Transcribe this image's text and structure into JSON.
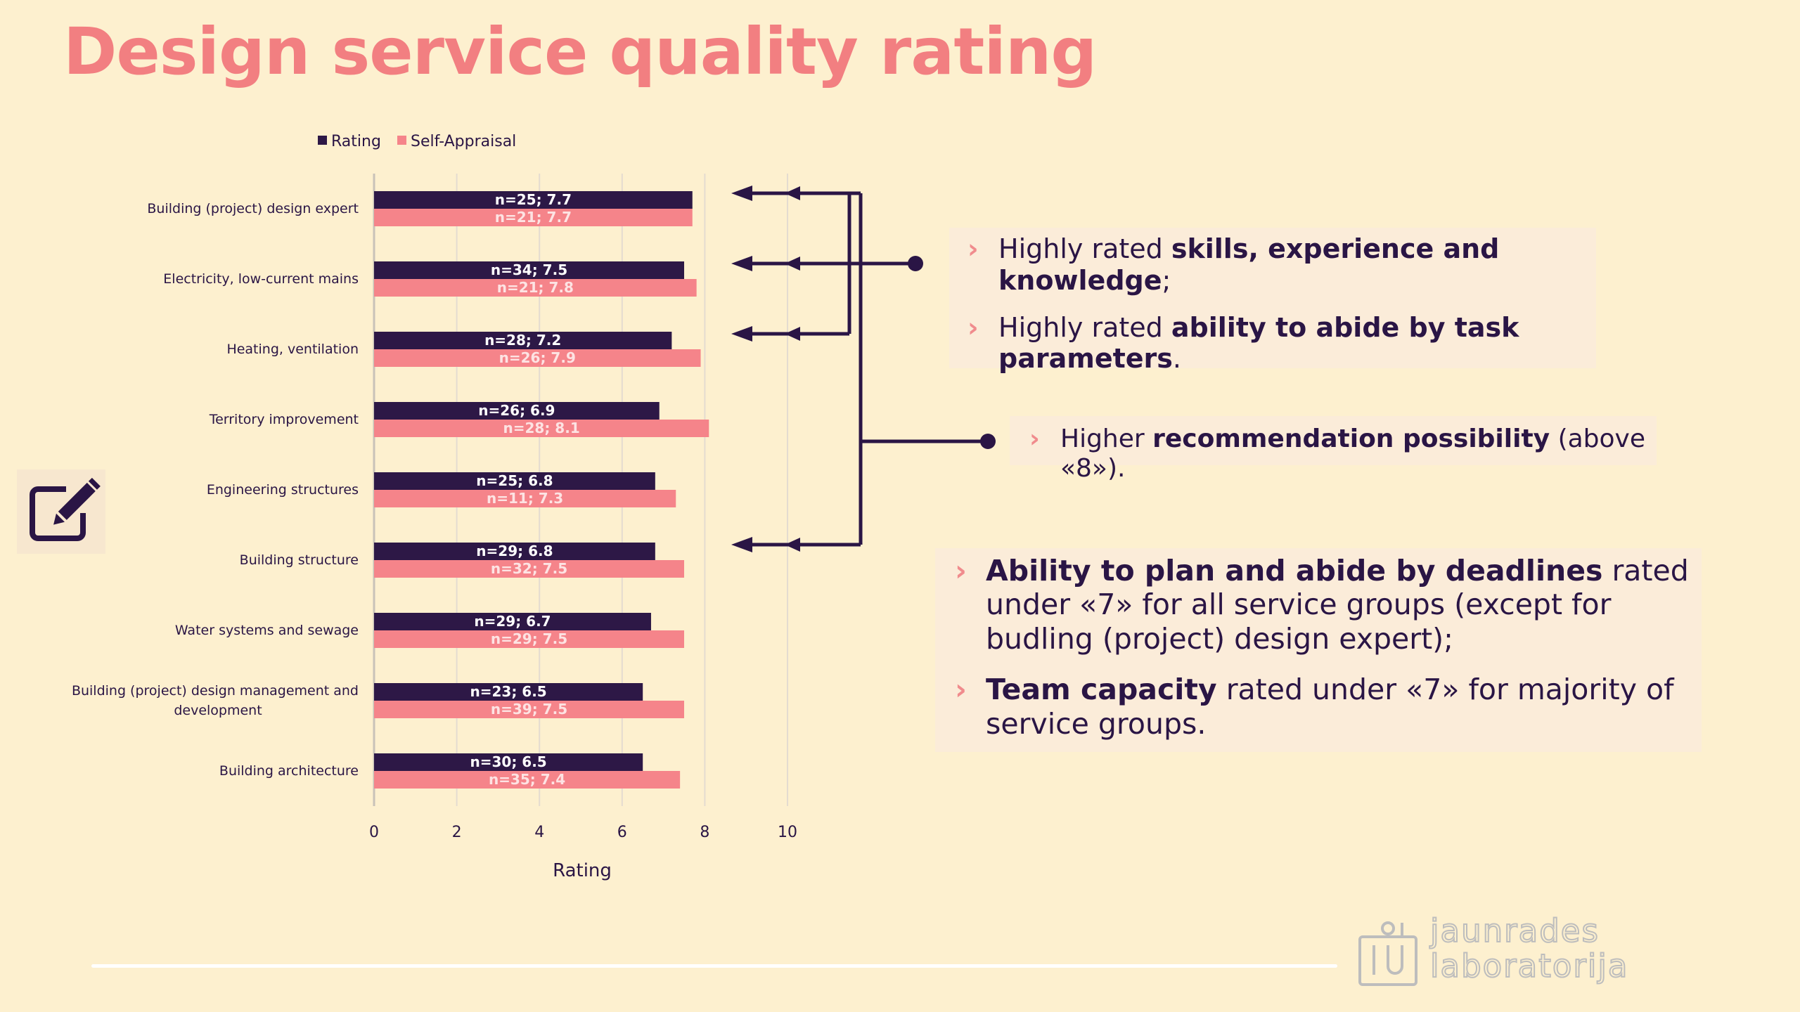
{
  "title": "Design service quality rating",
  "chart_data": {
    "type": "bar",
    "orientation": "horizontal",
    "xlabel": "Rating",
    "xlim": [
      0,
      10
    ],
    "xticks": [
      0,
      2,
      4,
      6,
      8,
      10
    ],
    "legend_position": "top",
    "categories": [
      "Building (project) design expert",
      "Electricity, low-current mains",
      "Heating, ventilation",
      "Territory improvement",
      "Engineering structures",
      "Building structure",
      "Water systems and sewage",
      "Building (project) design management and development",
      "Building architecture"
    ],
    "series": [
      {
        "name": "Rating",
        "color": "#2d1846",
        "values": [
          7.7,
          7.5,
          7.2,
          6.9,
          6.8,
          6.8,
          6.7,
          6.5,
          6.5
        ],
        "labels": [
          "n=25; 7.7",
          "n=34; 7.5",
          "n=28; 7.2",
          "n=26; 6.9",
          "n=25; 6.8",
          "n=29; 6.8",
          "n=29; 6.7",
          "n=23; 6.5",
          "n=30; 6.5"
        ]
      },
      {
        "name": "Self-Appraisal",
        "color": "#f5848a",
        "values": [
          7.7,
          7.8,
          7.9,
          8.1,
          7.3,
          7.5,
          7.5,
          7.5,
          7.4
        ],
        "labels": [
          "n=21; 7.7",
          "n=21; 7.8",
          "n=26; 7.9",
          "n=28; 8.1",
          "n=11; 7.3",
          "n=32; 7.5",
          "n=29; 7.5",
          "n=39; 7.5",
          "n=35; 7.4"
        ]
      }
    ]
  },
  "panels": {
    "p1": {
      "b1_pre": "Highly rated ",
      "b1_bold": "skills, experience and knowledge",
      "b1_post": ";",
      "b2_pre": "Highly rated ",
      "b2_bold": "ability to abide by task parameters",
      "b2_post": "."
    },
    "p2": {
      "pre": "Higher ",
      "bold": "recommendation possibility",
      "post": " (above «8»)."
    },
    "p3": {
      "b1_bold": "Ability to plan and abide by deadlines",
      "b1_post": " rated under «7» for all service groups (except for budling (project) design expert);",
      "b2_bold": "Team capacity",
      "b2_post": " rated under «7» for majority of service groups."
    }
  },
  "bullet_glyph": "›",
  "logo": {
    "line1": "jaunrades",
    "line2": "laboratorija"
  },
  "icons": {
    "edit": "edit-icon",
    "logo": "logo-icon"
  }
}
